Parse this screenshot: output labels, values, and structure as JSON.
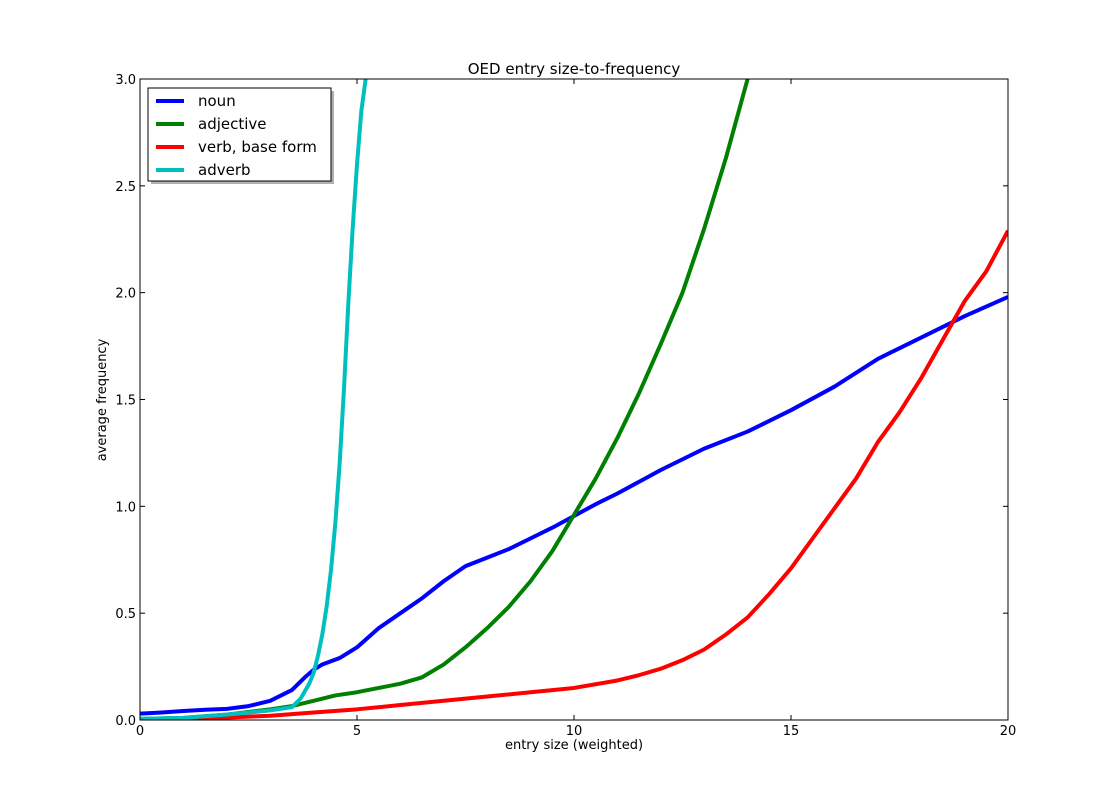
{
  "chart_data": {
    "type": "line",
    "title": "OED entry size-to-frequency",
    "xlabel": "entry size (weighted)",
    "ylabel": "average frequency",
    "xlim": [
      0,
      20
    ],
    "ylim": [
      0,
      3.0
    ],
    "xticks": [
      0,
      5,
      10,
      15,
      20
    ],
    "xtick_labels": [
      "0",
      "5",
      "10",
      "15",
      "20"
    ],
    "yticks": [
      0,
      0.5,
      1.0,
      1.5,
      2.0,
      2.5,
      3.0
    ],
    "ytick_labels": [
      "0.0",
      "0.5",
      "1.0",
      "1.5",
      "2.0",
      "2.5",
      "3.0"
    ],
    "grid": false,
    "legend_position": "top-left",
    "series": [
      {
        "name": "noun",
        "color": "#0000ff",
        "x": [
          0,
          0.5,
          1,
          1.5,
          2,
          2.5,
          3,
          3.5,
          3.8,
          4,
          4.2,
          4.6,
          5,
          5.5,
          6,
          6.5,
          7,
          7.5,
          8,
          8.5,
          9,
          9.5,
          10,
          10.5,
          11,
          12,
          13,
          14,
          15,
          16,
          17,
          18,
          19,
          20
        ],
        "y": [
          0.03,
          0.035,
          0.042,
          0.048,
          0.052,
          0.065,
          0.09,
          0.14,
          0.2,
          0.235,
          0.26,
          0.29,
          0.34,
          0.43,
          0.5,
          0.57,
          0.65,
          0.72,
          0.76,
          0.8,
          0.85,
          0.9,
          0.955,
          1.01,
          1.06,
          1.17,
          1.27,
          1.35,
          1.45,
          1.56,
          1.69,
          1.79,
          1.89,
          1.98
        ]
      },
      {
        "name": "adjective",
        "color": "#008000",
        "x": [
          0,
          1,
          2,
          3,
          3.5,
          4,
          4.5,
          5,
          5.5,
          6,
          6.5,
          7,
          7.5,
          8,
          8.5,
          9,
          9.5,
          10,
          10.5,
          11,
          11.5,
          12,
          12.5,
          13,
          13.5,
          14
        ],
        "y": [
          0.005,
          0.01,
          0.025,
          0.05,
          0.065,
          0.09,
          0.115,
          0.13,
          0.15,
          0.17,
          0.2,
          0.26,
          0.34,
          0.43,
          0.53,
          0.65,
          0.79,
          0.96,
          1.13,
          1.32,
          1.53,
          1.76,
          2.0,
          2.3,
          2.63,
          3.0
        ]
      },
      {
        "name": "verb, base form",
        "color": "#ff0000",
        "x": [
          0,
          1,
          2,
          3,
          4,
          5,
          6,
          7,
          8,
          9,
          10,
          11,
          11.5,
          12,
          12.5,
          13,
          13.5,
          14,
          14.5,
          15,
          15.5,
          16,
          16.5,
          17,
          17.5,
          18,
          18.5,
          19,
          19.5,
          20
        ],
        "y": [
          0.0,
          0.005,
          0.012,
          0.02,
          0.035,
          0.05,
          0.07,
          0.09,
          0.11,
          0.13,
          0.15,
          0.185,
          0.21,
          0.24,
          0.28,
          0.33,
          0.4,
          0.48,
          0.59,
          0.71,
          0.85,
          0.99,
          1.13,
          1.3,
          1.44,
          1.6,
          1.78,
          1.96,
          2.1,
          2.29
        ]
      },
      {
        "name": "adverb",
        "color": "#00bfbf",
        "x": [
          0,
          1,
          2,
          3,
          3.5,
          3.7,
          3.9,
          4.0,
          4.1,
          4.2,
          4.3,
          4.4,
          4.5,
          4.6,
          4.7,
          4.8,
          4.9,
          5.0,
          5.1,
          5.2
        ],
        "y": [
          0.005,
          0.01,
          0.025,
          0.045,
          0.06,
          0.1,
          0.17,
          0.22,
          0.3,
          0.4,
          0.53,
          0.7,
          0.92,
          1.2,
          1.55,
          1.95,
          2.3,
          2.6,
          2.85,
          3.0
        ]
      }
    ]
  }
}
